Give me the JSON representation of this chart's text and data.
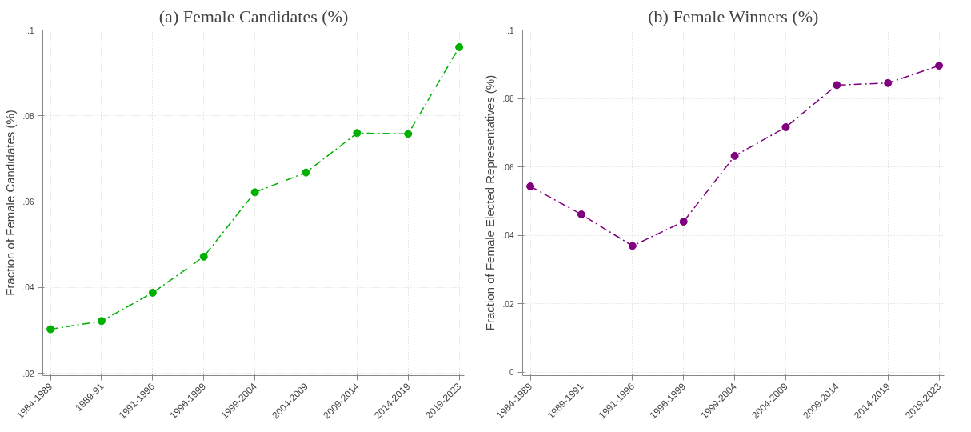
{
  "chart_data": [
    {
      "type": "line",
      "title": "(a) Female Candidates (%)",
      "ylabel": "Fraction of Female Candidates (%)",
      "categories": [
        "1984-1989",
        "1989-91",
        "1991-1996",
        "1996-1999",
        "1999-2004",
        "2004-2009",
        "2009-2014",
        "2014-2019",
        "2019-2023"
      ],
      "series": [
        {
          "color": "#00b000",
          "values": [
            0.0303,
            0.0322,
            0.0388,
            0.0472,
            0.0622,
            0.0668,
            0.076,
            0.0758,
            0.096
          ]
        }
      ],
      "ylim": [
        0.0195,
        0.1
      ],
      "yticks": [
        {
          "value": 0.02,
          "label": ".02"
        },
        {
          "value": 0.04,
          "label": ".04"
        },
        {
          "value": 0.06,
          "label": ".06"
        },
        {
          "value": 0.08,
          "label": ".08"
        },
        {
          "value": 0.1,
          "label": ".1"
        }
      ],
      "grid": true,
      "marker": "circle",
      "line_style": "dashed"
    },
    {
      "type": "line",
      "title": "(b) Female Winners (%)",
      "ylabel": "Fraction of Female Elected Representatives (%)",
      "categories": [
        "1984-1989",
        "1989-1991",
        "1991-1996",
        "1996-1999",
        "1999-2004",
        "2004-2009",
        "2009-2014",
        "2014-2019",
        "2019-2023"
      ],
      "series": [
        {
          "color": "#800080",
          "values": [
            0.0543,
            0.0461,
            0.0369,
            0.044,
            0.0632,
            0.0716,
            0.0839,
            0.0845,
            0.0896
          ]
        }
      ],
      "ylim": [
        -0.001,
        0.1
      ],
      "yticks": [
        {
          "value": 0,
          "label": "0"
        },
        {
          "value": 0.02,
          "label": ".02"
        },
        {
          "value": 0.04,
          "label": ".04"
        },
        {
          "value": 0.06,
          "label": ".06"
        },
        {
          "value": 0.08,
          "label": ".08"
        },
        {
          "value": 0.1,
          "label": ".1"
        }
      ],
      "grid": true,
      "marker": "circle",
      "line_style": "dashed"
    }
  ]
}
